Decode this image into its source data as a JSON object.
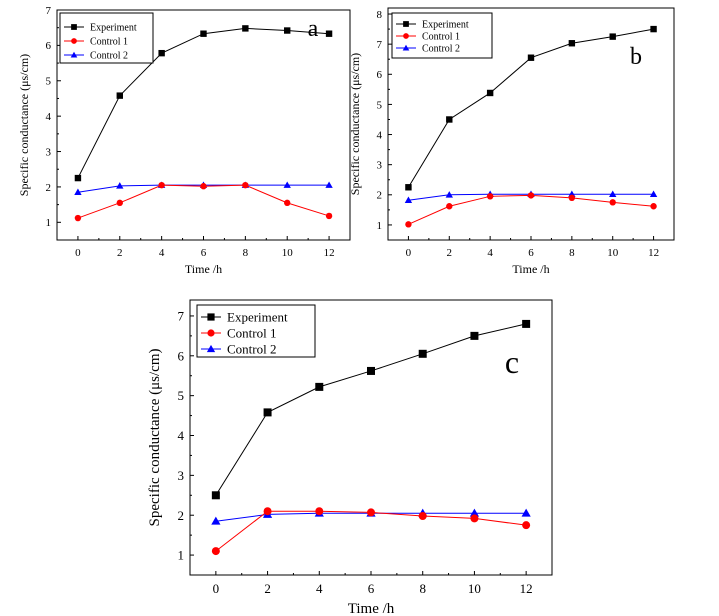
{
  "chart_data": [
    {
      "type": "line",
      "panel_label": "a",
      "x": [
        0,
        2,
        4,
        6,
        8,
        10,
        12
      ],
      "series": [
        {
          "name": "Experiment",
          "color": "#000000",
          "marker": "square",
          "values": [
            2.25,
            4.58,
            5.78,
            6.33,
            6.48,
            6.42,
            6.33
          ]
        },
        {
          "name": "Control 1",
          "color": "#ff0000",
          "marker": "circle",
          "values": [
            1.12,
            1.55,
            2.05,
            2.02,
            2.05,
            1.55,
            1.18
          ]
        },
        {
          "name": "Control 2",
          "color": "#0000ff",
          "marker": "triangle",
          "values": [
            1.85,
            2.03,
            2.05,
            2.05,
            2.05,
            2.05,
            2.05
          ]
        }
      ],
      "xlabel": "Time /h",
      "ylabel": "Specific conductance (μs/cm)",
      "xlim": [
        -1,
        13
      ],
      "ylim": [
        0.5,
        7
      ],
      "xticks": [
        "0",
        "2",
        "4",
        "6",
        "8",
        "10",
        "12"
      ],
      "yticks": [
        "1",
        "2",
        "3",
        "4",
        "5",
        "6",
        "7"
      ],
      "ytick_values": [
        1,
        2,
        3,
        4,
        5,
        6,
        7
      ],
      "legend_position": "top-left"
    },
    {
      "type": "line",
      "panel_label": "b",
      "x": [
        0,
        2,
        4,
        6,
        8,
        10,
        12
      ],
      "series": [
        {
          "name": "Experiment",
          "color": "#000000",
          "marker": "square",
          "values": [
            2.25,
            4.5,
            5.38,
            6.55,
            7.03,
            7.25,
            7.5
          ]
        },
        {
          "name": "Control 1",
          "color": "#ff0000",
          "marker": "circle",
          "values": [
            1.02,
            1.62,
            1.95,
            1.98,
            1.9,
            1.75,
            1.62
          ]
        },
        {
          "name": "Control 2",
          "color": "#0000ff",
          "marker": "triangle",
          "values": [
            1.82,
            2.0,
            2.02,
            2.02,
            2.02,
            2.02,
            2.02
          ]
        }
      ],
      "xlabel": "Time /h",
      "ylabel": "Specific conductance (μs/cm)",
      "xlim": [
        -1,
        13
      ],
      "ylim": [
        0.5,
        8.2
      ],
      "xticks": [
        "0",
        "2",
        "4",
        "6",
        "8",
        "10",
        "12"
      ],
      "yticks": [
        "1",
        "2",
        "3",
        "4",
        "5",
        "6",
        "7",
        "8"
      ],
      "ytick_values": [
        1,
        2,
        3,
        4,
        5,
        6,
        7,
        8
      ],
      "legend_position": "top-left"
    },
    {
      "type": "line",
      "panel_label": "c",
      "x": [
        0,
        2,
        4,
        6,
        8,
        10,
        12
      ],
      "series": [
        {
          "name": "Experiment",
          "color": "#000000",
          "marker": "square",
          "values": [
            2.5,
            4.58,
            5.22,
            5.62,
            6.05,
            6.5,
            6.8
          ]
        },
        {
          "name": "Control 1",
          "color": "#ff0000",
          "marker": "circle",
          "values": [
            1.1,
            2.1,
            2.1,
            2.07,
            1.98,
            1.92,
            1.75
          ]
        },
        {
          "name": "Control 2",
          "color": "#0000ff",
          "marker": "triangle",
          "values": [
            1.85,
            2.02,
            2.05,
            2.05,
            2.05,
            2.05,
            2.05
          ]
        }
      ],
      "xlabel": "Time /h",
      "ylabel": "Specific conductance (μs/cm)",
      "xlim": [
        -1,
        13
      ],
      "ylim": [
        0.5,
        7.4
      ],
      "xticks": [
        "0",
        "2",
        "4",
        "6",
        "8",
        "10",
        "12"
      ],
      "yticks": [
        "1",
        "2",
        "3",
        "4",
        "5",
        "6",
        "7"
      ],
      "ytick_values": [
        1,
        2,
        3,
        4,
        5,
        6,
        7
      ],
      "legend_position": "top-left"
    }
  ]
}
